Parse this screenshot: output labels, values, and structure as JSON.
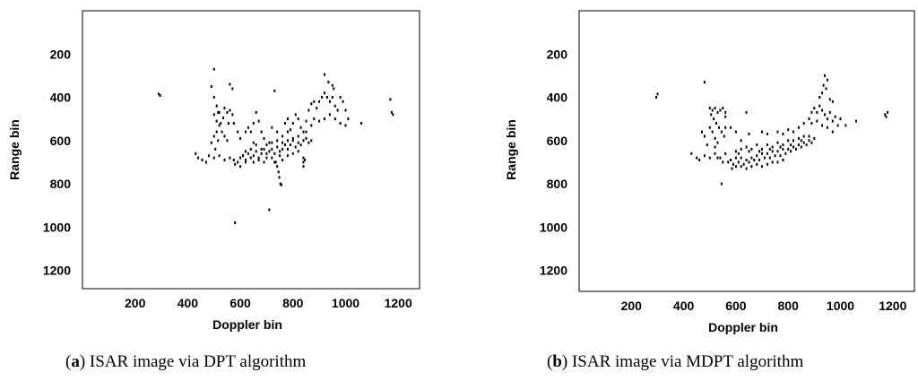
{
  "chart_data": [
    {
      "type": "scatter",
      "caption_letter": "a",
      "caption_text": "ISAR image via DPT algorithm",
      "xlabel": "Doppler bin",
      "ylabel": "Range bin",
      "xlim": [
        0,
        1280
      ],
      "ylim": [
        0,
        1280
      ],
      "y_inverted": true,
      "xticks": [
        200,
        400,
        600,
        800,
        1000,
        1200
      ],
      "yticks": [
        200,
        400,
        600,
        800,
        1000,
        1200
      ],
      "grid": false,
      "points": [
        [
          290,
          385
        ],
        [
          295,
          392
        ],
        [
          500,
          270
        ],
        [
          490,
          350
        ],
        [
          560,
          340
        ],
        [
          570,
          360
        ],
        [
          730,
          370
        ],
        [
          920,
          295
        ],
        [
          935,
          330
        ],
        [
          950,
          345
        ],
        [
          955,
          360
        ],
        [
          500,
          400
        ],
        [
          510,
          440
        ],
        [
          520,
          470
        ],
        [
          540,
          450
        ],
        [
          550,
          470
        ],
        [
          560,
          460
        ],
        [
          570,
          480
        ],
        [
          500,
          480
        ],
        [
          510,
          510
        ],
        [
          520,
          530
        ],
        [
          530,
          560
        ],
        [
          540,
          580
        ],
        [
          550,
          600
        ],
        [
          490,
          610
        ],
        [
          505,
          640
        ],
        [
          515,
          470
        ],
        [
          535,
          495
        ],
        [
          555,
          520
        ],
        [
          575,
          520
        ],
        [
          590,
          560
        ],
        [
          600,
          590
        ],
        [
          620,
          560
        ],
        [
          630,
          540
        ],
        [
          640,
          560
        ],
        [
          650,
          520
        ],
        [
          660,
          470
        ],
        [
          670,
          510
        ],
        [
          680,
          560
        ],
        [
          690,
          590
        ],
        [
          710,
          610
        ],
        [
          720,
          540
        ],
        [
          740,
          560
        ],
        [
          760,
          580
        ],
        [
          770,
          520
        ],
        [
          780,
          500
        ],
        [
          790,
          550
        ],
        [
          800,
          520
        ],
        [
          810,
          480
        ],
        [
          820,
          500
        ],
        [
          830,
          540
        ],
        [
          840,
          560
        ],
        [
          850,
          510
        ],
        [
          860,
          460
        ],
        [
          870,
          430
        ],
        [
          880,
          420
        ],
        [
          890,
          450
        ],
        [
          900,
          420
        ],
        [
          910,
          400
        ],
        [
          920,
          380
        ],
        [
          930,
          400
        ],
        [
          940,
          420
        ],
        [
          950,
          400
        ],
        [
          960,
          440
        ],
        [
          970,
          460
        ],
        [
          980,
          400
        ],
        [
          990,
          420
        ],
        [
          1000,
          460
        ],
        [
          1010,
          500
        ],
        [
          1060,
          520
        ],
        [
          870,
          530
        ],
        [
          880,
          500
        ],
        [
          900,
          510
        ],
        [
          920,
          500
        ],
        [
          940,
          480
        ],
        [
          960,
          500
        ],
        [
          980,
          520
        ],
        [
          1000,
          530
        ],
        [
          1170,
          410
        ],
        [
          1175,
          470
        ],
        [
          1180,
          480
        ],
        [
          430,
          660
        ],
        [
          440,
          680
        ],
        [
          455,
          690
        ],
        [
          470,
          700
        ],
        [
          480,
          670
        ],
        [
          500,
          680
        ],
        [
          520,
          670
        ],
        [
          540,
          690
        ],
        [
          560,
          680
        ],
        [
          575,
          690
        ],
        [
          590,
          700
        ],
        [
          600,
          680
        ],
        [
          610,
          670
        ],
        [
          620,
          690
        ],
        [
          630,
          660
        ],
        [
          640,
          680
        ],
        [
          650,
          670
        ],
        [
          660,
          650
        ],
        [
          670,
          680
        ],
        [
          680,
          660
        ],
        [
          690,
          640
        ],
        [
          700,
          660
        ],
        [
          710,
          650
        ],
        [
          720,
          640
        ],
        [
          730,
          660
        ],
        [
          740,
          630
        ],
        [
          750,
          650
        ],
        [
          760,
          640
        ],
        [
          770,
          620
        ],
        [
          780,
          640
        ],
        [
          790,
          620
        ],
        [
          800,
          600
        ],
        [
          810,
          630
        ],
        [
          820,
          610
        ],
        [
          830,
          620
        ],
        [
          840,
          600
        ],
        [
          850,
          590
        ],
        [
          860,
          610
        ],
        [
          870,
          600
        ],
        [
          580,
          710
        ],
        [
          600,
          720
        ],
        [
          620,
          700
        ],
        [
          650,
          700
        ],
        [
          670,
          690
        ],
        [
          690,
          700
        ],
        [
          700,
          680
        ],
        [
          720,
          680
        ],
        [
          730,
          700
        ],
        [
          750,
          670
        ],
        [
          760,
          690
        ],
        [
          780,
          670
        ],
        [
          800,
          660
        ],
        [
          820,
          650
        ],
        [
          840,
          680
        ],
        [
          840,
          700
        ],
        [
          840,
          720
        ],
        [
          845,
          690
        ],
        [
          735,
          700
        ],
        [
          740,
          720
        ],
        [
          745,
          745
        ],
        [
          748,
          770
        ],
        [
          752,
          800
        ],
        [
          756,
          805
        ],
        [
          710,
          920
        ],
        [
          580,
          980
        ],
        [
          620,
          650
        ],
        [
          640,
          640
        ],
        [
          660,
          620
        ],
        [
          680,
          640
        ],
        [
          700,
          620
        ],
        [
          720,
          610
        ],
        [
          740,
          600
        ],
        [
          760,
          610
        ],
        [
          780,
          600
        ],
        [
          800,
          590
        ],
        [
          820,
          580
        ],
        [
          500,
          580
        ],
        [
          510,
          560
        ],
        [
          515,
          600
        ],
        [
          525,
          520
        ],
        [
          650,
          610
        ],
        [
          780,
          560
        ],
        [
          850,
          560
        ]
      ]
    },
    {
      "type": "scatter",
      "caption_letter": "b",
      "caption_text": "ISAR image via MDPT algorithm",
      "xlabel": "Doppler bin",
      "ylabel": "Range bin",
      "xlim": [
        0,
        1280
      ],
      "ylim": [
        0,
        1280
      ],
      "y_inverted": true,
      "xticks": [
        200,
        400,
        600,
        800,
        1000,
        1200
      ],
      "yticks": [
        200,
        400,
        600,
        800,
        1000,
        1200
      ],
      "grid": false,
      "points": [
        [
          300,
          385
        ],
        [
          295,
          400
        ],
        [
          480,
          330
        ],
        [
          940,
          300
        ],
        [
          950,
          320
        ],
        [
          935,
          345
        ],
        [
          945,
          360
        ],
        [
          930,
          380
        ],
        [
          920,
          400
        ],
        [
          960,
          410
        ],
        [
          970,
          420
        ],
        [
          500,
          450
        ],
        [
          510,
          460
        ],
        [
          520,
          450
        ],
        [
          530,
          470
        ],
        [
          540,
          460
        ],
        [
          550,
          450
        ],
        [
          560,
          470
        ],
        [
          505,
          480
        ],
        [
          515,
          500
        ],
        [
          525,
          520
        ],
        [
          535,
          540
        ],
        [
          545,
          560
        ],
        [
          555,
          580
        ],
        [
          500,
          540
        ],
        [
          510,
          560
        ],
        [
          520,
          590
        ],
        [
          530,
          610
        ],
        [
          490,
          620
        ],
        [
          520,
          630
        ],
        [
          560,
          490
        ],
        [
          580,
          540
        ],
        [
          600,
          560
        ],
        [
          620,
          600
        ],
        [
          640,
          470
        ],
        [
          650,
          570
        ],
        [
          700,
          560
        ],
        [
          720,
          570
        ],
        [
          760,
          560
        ],
        [
          780,
          570
        ],
        [
          800,
          550
        ],
        [
          820,
          560
        ],
        [
          840,
          540
        ],
        [
          860,
          520
        ],
        [
          880,
          500
        ],
        [
          890,
          470
        ],
        [
          900,
          450
        ],
        [
          910,
          470
        ],
        [
          920,
          440
        ],
        [
          930,
          460
        ],
        [
          940,
          480
        ],
        [
          950,
          500
        ],
        [
          960,
          470
        ],
        [
          970,
          510
        ],
        [
          980,
          490
        ],
        [
          1000,
          500
        ],
        [
          1020,
          530
        ],
        [
          1060,
          510
        ],
        [
          890,
          520
        ],
        [
          910,
          510
        ],
        [
          930,
          530
        ],
        [
          950,
          540
        ],
        [
          970,
          560
        ],
        [
          990,
          530
        ],
        [
          1170,
          480
        ],
        [
          1175,
          490
        ],
        [
          1180,
          470
        ],
        [
          430,
          660
        ],
        [
          450,
          680
        ],
        [
          460,
          690
        ],
        [
          480,
          670
        ],
        [
          500,
          680
        ],
        [
          520,
          660
        ],
        [
          540,
          680
        ],
        [
          560,
          660
        ],
        [
          570,
          700
        ],
        [
          580,
          690
        ],
        [
          590,
          710
        ],
        [
          600,
          680
        ],
        [
          610,
          700
        ],
        [
          620,
          680
        ],
        [
          630,
          710
        ],
        [
          640,
          690
        ],
        [
          650,
          700
        ],
        [
          660,
          680
        ],
        [
          670,
          690
        ],
        [
          680,
          670
        ],
        [
          690,
          690
        ],
        [
          700,
          660
        ],
        [
          710,
          680
        ],
        [
          720,
          660
        ],
        [
          730,
          680
        ],
        [
          740,
          650
        ],
        [
          750,
          670
        ],
        [
          760,
          650
        ],
        [
          770,
          670
        ],
        [
          780,
          640
        ],
        [
          790,
          660
        ],
        [
          800,
          640
        ],
        [
          810,
          650
        ],
        [
          820,
          630
        ],
        [
          830,
          640
        ],
        [
          840,
          620
        ],
        [
          850,
          630
        ],
        [
          860,
          610
        ],
        [
          870,
          620
        ],
        [
          880,
          600
        ],
        [
          890,
          610
        ],
        [
          900,
          590
        ],
        [
          585,
          730
        ],
        [
          600,
          720
        ],
        [
          620,
          720
        ],
        [
          640,
          730
        ],
        [
          660,
          720
        ],
        [
          680,
          710
        ],
        [
          700,
          720
        ],
        [
          720,
          710
        ],
        [
          740,
          700
        ],
        [
          760,
          700
        ],
        [
          780,
          690
        ],
        [
          600,
          650
        ],
        [
          620,
          640
        ],
        [
          640,
          630
        ],
        [
          660,
          640
        ],
        [
          680,
          620
        ],
        [
          700,
          640
        ],
        [
          720,
          620
        ],
        [
          740,
          630
        ],
        [
          760,
          610
        ],
        [
          780,
          620
        ],
        [
          800,
          600
        ],
        [
          820,
          600
        ],
        [
          840,
          590
        ],
        [
          860,
          580
        ],
        [
          530,
          680
        ],
        [
          550,
          700
        ],
        [
          610,
          660
        ],
        [
          650,
          650
        ],
        [
          690,
          650
        ],
        [
          730,
          640
        ],
        [
          770,
          630
        ],
        [
          810,
          620
        ],
        [
          850,
          600
        ],
        [
          880,
          580
        ],
        [
          545,
          800
        ],
        [
          480,
          580
        ],
        [
          470,
          560
        ],
        [
          560,
          540
        ]
      ]
    }
  ]
}
